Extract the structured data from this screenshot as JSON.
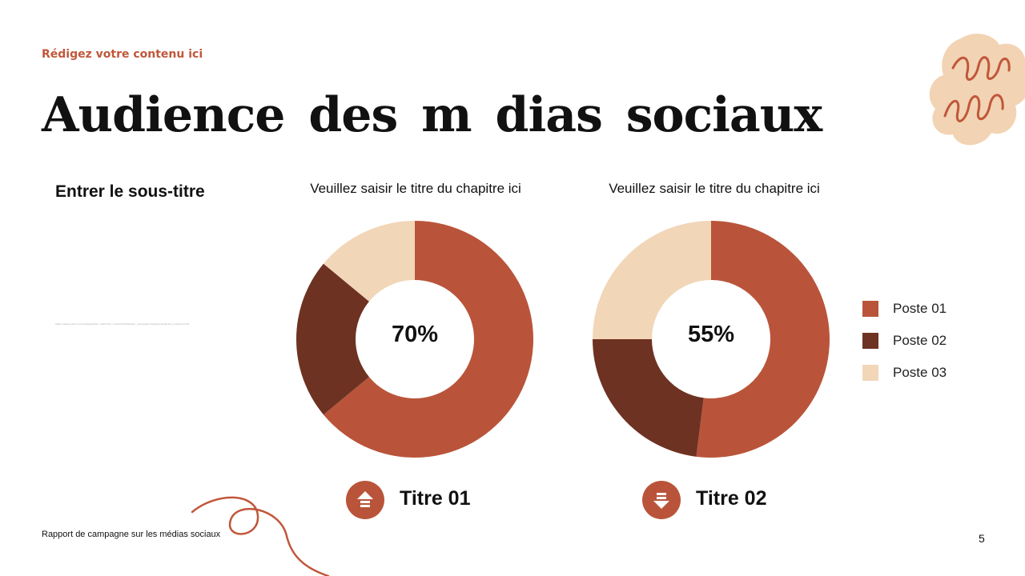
{
  "header": {
    "eyebrow": "Rédigez votre contenu ici",
    "title": "Audience des m dias sociaux"
  },
  "left_panel": {
    "subtitle": "Entrer le sous-titre",
    "tiny_text": "https://www.canva.com/design/DAG...edit?utm_content=DAG&utm_campaign=designshare&utm_medium=link"
  },
  "colors": {
    "accent": "#c0573a",
    "poste_01": "#b9543a",
    "poste_02": "#6e3222",
    "poste_03": "#f2d6b8",
    "badge": "#b9543a",
    "blob": "#f2d3b3",
    "squiggle": "#c0573a"
  },
  "chart_data": [
    {
      "type": "pie",
      "title": "Veuillez saisir le titre du chapitre ici",
      "center_label": "70%",
      "labels": [
        "Poste 01",
        "Poste 02",
        "Poste 03"
      ],
      "values": [
        64,
        22,
        14
      ],
      "metric_label": "Titre 01",
      "badge_icon": "arrow-up-icon"
    },
    {
      "type": "pie",
      "title": "Veuillez saisir le titre du chapitre ici",
      "center_label": "55%",
      "labels": [
        "Poste 01",
        "Poste 02",
        "Poste 03"
      ],
      "values": [
        52,
        23,
        25
      ],
      "metric_label": "Titre 02",
      "badge_icon": "arrow-down-icon"
    }
  ],
  "legend": [
    "Poste 01",
    "Poste 02",
    "Poste 03"
  ],
  "footer": {
    "text": "Rapport de campagne sur les médias sociaux",
    "page_number": "5"
  }
}
